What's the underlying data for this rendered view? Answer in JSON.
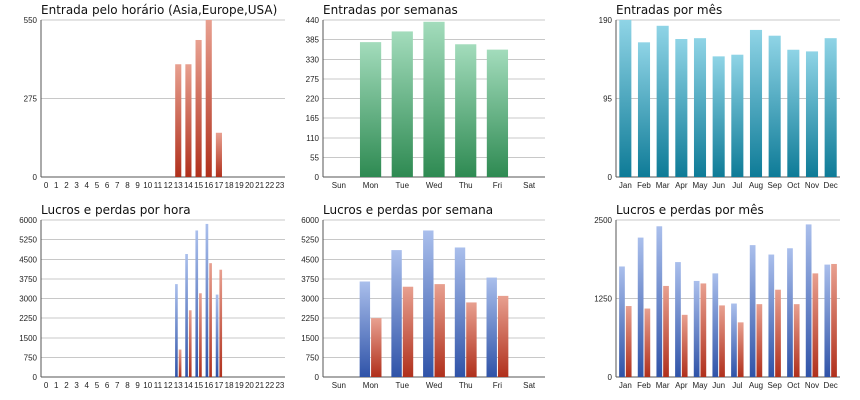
{
  "chart_data": [
    {
      "type": "bar",
      "title": "Entrada pelo horário (Asia,Europe,USA)",
      "categories": [
        "0",
        "1",
        "2",
        "3",
        "4",
        "5",
        "6",
        "7",
        "8",
        "9",
        "10",
        "11",
        "12",
        "13",
        "14",
        "15",
        "16",
        "17",
        "18",
        "19",
        "20",
        "21",
        "22",
        "23"
      ],
      "series": [
        {
          "values": [
            0,
            0,
            0,
            0,
            0,
            0,
            0,
            0,
            0,
            0,
            0,
            0,
            0,
            395,
            395,
            480,
            550,
            155,
            0,
            0,
            0,
            0,
            0,
            0
          ]
        }
      ],
      "yticks": [
        "0",
        "275",
        "550"
      ],
      "ylim": [
        0,
        550
      ],
      "grid": true,
      "colors": [
        "#c0504d"
      ]
    },
    {
      "type": "bar",
      "title": "Entradas por semanas",
      "categories": [
        "Sun",
        "Mon",
        "Tue",
        "Wed",
        "Thu",
        "Fri",
        "Sat"
      ],
      "series": [
        {
          "values": [
            0,
            378,
            408,
            435,
            372,
            357,
            0
          ]
        }
      ],
      "yticks": [
        "0",
        "55",
        "110",
        "165",
        "220",
        "275",
        "330",
        "385",
        "440"
      ],
      "ylim": [
        0,
        440
      ],
      "grid": true,
      "colors": [
        "#3a9a5e"
      ]
    },
    {
      "type": "bar",
      "title": "Entradas por mês",
      "categories": [
        "Jan",
        "Feb",
        "Mar",
        "Apr",
        "May",
        "Jun",
        "Jul",
        "Aug",
        "Sep",
        "Oct",
        "Nov",
        "Dec"
      ],
      "series": [
        {
          "values": [
            190,
            163,
            183,
            167,
            168,
            146,
            148,
            178,
            171,
            154,
            152,
            168
          ]
        }
      ],
      "yticks": [
        "0",
        "95",
        "190"
      ],
      "ylim": [
        0,
        190
      ],
      "grid": true,
      "colors": [
        "#31a3bd"
      ]
    },
    {
      "type": "bar",
      "title": "Lucros e perdas por hora",
      "categories": [
        "0",
        "1",
        "2",
        "3",
        "4",
        "5",
        "6",
        "7",
        "8",
        "9",
        "10",
        "11",
        "12",
        "13",
        "14",
        "15",
        "16",
        "17",
        "18",
        "19",
        "20",
        "21",
        "22",
        "23"
      ],
      "series": [
        {
          "values": [
            0,
            0,
            0,
            0,
            0,
            0,
            0,
            0,
            0,
            0,
            0,
            0,
            0,
            3550,
            4700,
            5600,
            5850,
            3150,
            0,
            0,
            0,
            0,
            0,
            0
          ]
        },
        {
          "values": [
            0,
            0,
            0,
            0,
            0,
            0,
            0,
            0,
            0,
            0,
            0,
            0,
            0,
            1050,
            2550,
            3200,
            4350,
            4100,
            0,
            0,
            0,
            0,
            0,
            0
          ]
        }
      ],
      "yticks": [
        "0",
        "750",
        "1500",
        "2250",
        "3000",
        "3750",
        "4500",
        "5250",
        "6000"
      ],
      "ylim": [
        0,
        6000
      ],
      "grid": true,
      "colors": [
        "#4f72c2",
        "#c0504d"
      ]
    },
    {
      "type": "bar",
      "title": "Lucros e perdas por semana",
      "categories": [
        "Sun",
        "Mon",
        "Tue",
        "Wed",
        "Thu",
        "Fri",
        "Sat"
      ],
      "series": [
        {
          "values": [
            0,
            3650,
            4850,
            5600,
            4950,
            3800,
            0
          ]
        },
        {
          "values": [
            0,
            2250,
            3450,
            3550,
            2850,
            3100,
            0
          ]
        }
      ],
      "yticks": [
        "0",
        "750",
        "1500",
        "2250",
        "3000",
        "3750",
        "4500",
        "5250",
        "6000"
      ],
      "ylim": [
        0,
        6000
      ],
      "grid": true,
      "colors": [
        "#4f72c2",
        "#c0504d"
      ]
    },
    {
      "type": "bar",
      "title": "Lucros e perdas por mês",
      "categories": [
        "Jan",
        "Feb",
        "Mar",
        "Apr",
        "May",
        "Jun",
        "Jul",
        "Aug",
        "Sep",
        "Oct",
        "Nov",
        "Dec"
      ],
      "series": [
        {
          "values": [
            1760,
            2220,
            2400,
            1830,
            1530,
            1650,
            1170,
            2100,
            1950,
            2050,
            2430,
            1790
          ]
        },
        {
          "values": [
            1130,
            1090,
            1450,
            990,
            1490,
            1140,
            870,
            1160,
            1390,
            1160,
            1650,
            1800
          ]
        }
      ],
      "yticks": [
        "0",
        "1250",
        "2500"
      ],
      "ylim": [
        0,
        2500
      ],
      "grid": true,
      "colors": [
        "#4f72c2",
        "#c0504d"
      ]
    }
  ]
}
